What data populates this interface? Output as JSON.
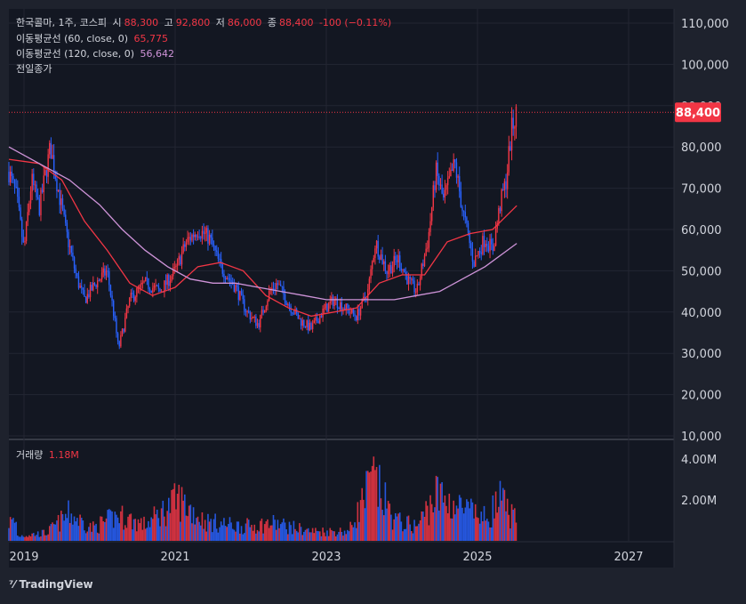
{
  "header": {
    "symbol": "한국콜마, 1주, 코스피",
    "open_label": "시",
    "open": "88,300",
    "high_label": "고",
    "high": "92,800",
    "low_label": "저",
    "low": "86,000",
    "close_label": "종",
    "close": "88,400",
    "change": "-100 (−0.11%)"
  },
  "indicators": [
    {
      "label": "이동평균선 (60, close, 0)",
      "value": "65,775",
      "color": "#f23645"
    },
    {
      "label": "이동평균선 (120, close, 0)",
      "value": "56,642",
      "color": "#ce93d8"
    }
  ],
  "prev_close_label": "전일종가",
  "last_price_label": "88,400",
  "volume": {
    "label": "거래량",
    "value": "1.18M"
  },
  "branding": "TradingView",
  "colors": {
    "up": "#f23645",
    "down": "#2962ff",
    "background": "#131722",
    "panel": "#1e222d",
    "ma60": "#f23645",
    "ma120": "#ce93d8"
  },
  "chart_data": {
    "type": "candlestick",
    "interval": "1 week",
    "price_axis": {
      "ticks": [
        "110,000",
        "100,000",
        "90,000",
        "80,000",
        "70,000",
        "60,000",
        "50,000",
        "40,000",
        "30,000",
        "20,000",
        "10,000"
      ],
      "ylim": [
        10000,
        110000
      ]
    },
    "volume_axis": {
      "ticks": [
        "4.00M",
        "2.00M"
      ]
    },
    "time_axis": {
      "ticks": [
        "2019",
        "2021",
        "2023",
        "2025",
        "2027"
      ],
      "xlim": [
        2018.8,
        2027.6
      ]
    },
    "price_series": [
      {
        "t": 2018.8,
        "p": 74000
      },
      {
        "t": 2018.9,
        "p": 68000
      },
      {
        "t": 2019.0,
        "p": 55000
      },
      {
        "t": 2019.1,
        "p": 72000
      },
      {
        "t": 2019.2,
        "p": 65000
      },
      {
        "t": 2019.35,
        "p": 80000
      },
      {
        "t": 2019.45,
        "p": 70000
      },
      {
        "t": 2019.55,
        "p": 60000
      },
      {
        "t": 2019.7,
        "p": 48000
      },
      {
        "t": 2019.8,
        "p": 43000
      },
      {
        "t": 2019.95,
        "p": 47000
      },
      {
        "t": 2020.1,
        "p": 50000
      },
      {
        "t": 2020.2,
        "p": 38000
      },
      {
        "t": 2020.25,
        "p": 31000
      },
      {
        "t": 2020.4,
        "p": 43000
      },
      {
        "t": 2020.6,
        "p": 47000
      },
      {
        "t": 2020.8,
        "p": 45000
      },
      {
        "t": 2021.0,
        "p": 50000
      },
      {
        "t": 2021.15,
        "p": 57000
      },
      {
        "t": 2021.3,
        "p": 60000
      },
      {
        "t": 2021.45,
        "p": 58000
      },
      {
        "t": 2021.6,
        "p": 51000
      },
      {
        "t": 2021.8,
        "p": 46000
      },
      {
        "t": 2021.95,
        "p": 40000
      },
      {
        "t": 2022.1,
        "p": 37000
      },
      {
        "t": 2022.25,
        "p": 45000
      },
      {
        "t": 2022.35,
        "p": 47000
      },
      {
        "t": 2022.5,
        "p": 42000
      },
      {
        "t": 2022.65,
        "p": 38000
      },
      {
        "t": 2022.8,
        "p": 36000
      },
      {
        "t": 2022.95,
        "p": 40000
      },
      {
        "t": 2023.1,
        "p": 43000
      },
      {
        "t": 2023.25,
        "p": 41000
      },
      {
        "t": 2023.4,
        "p": 39000
      },
      {
        "t": 2023.55,
        "p": 45000
      },
      {
        "t": 2023.65,
        "p": 57000
      },
      {
        "t": 2023.8,
        "p": 50000
      },
      {
        "t": 2023.95,
        "p": 53000
      },
      {
        "t": 2024.1,
        "p": 47000
      },
      {
        "t": 2024.2,
        "p": 45000
      },
      {
        "t": 2024.35,
        "p": 58000
      },
      {
        "t": 2024.45,
        "p": 74000
      },
      {
        "t": 2024.55,
        "p": 67000
      },
      {
        "t": 2024.7,
        "p": 76000
      },
      {
        "t": 2024.8,
        "p": 65000
      },
      {
        "t": 2024.95,
        "p": 52000
      },
      {
        "t": 2025.1,
        "p": 58000
      },
      {
        "t": 2025.2,
        "p": 55000
      },
      {
        "t": 2025.3,
        "p": 66000
      },
      {
        "t": 2025.38,
        "p": 72000
      },
      {
        "t": 2025.45,
        "p": 84000
      },
      {
        "t": 2025.52,
        "p": 88400
      }
    ],
    "ma60": [
      {
        "t": 2018.8,
        "p": 77000
      },
      {
        "t": 2019.2,
        "p": 76000
      },
      {
        "t": 2019.5,
        "p": 72000
      },
      {
        "t": 2019.8,
        "p": 62000
      },
      {
        "t": 2020.1,
        "p": 55000
      },
      {
        "t": 2020.4,
        "p": 47000
      },
      {
        "t": 2020.7,
        "p": 44000
      },
      {
        "t": 2021.0,
        "p": 46000
      },
      {
        "t": 2021.3,
        "p": 51000
      },
      {
        "t": 2021.6,
        "p": 52000
      },
      {
        "t": 2021.9,
        "p": 50000
      },
      {
        "t": 2022.2,
        "p": 44000
      },
      {
        "t": 2022.5,
        "p": 41000
      },
      {
        "t": 2022.8,
        "p": 39000
      },
      {
        "t": 2023.1,
        "p": 40000
      },
      {
        "t": 2023.4,
        "p": 41000
      },
      {
        "t": 2023.7,
        "p": 47000
      },
      {
        "t": 2024.0,
        "p": 49000
      },
      {
        "t": 2024.3,
        "p": 49000
      },
      {
        "t": 2024.6,
        "p": 57000
      },
      {
        "t": 2024.9,
        "p": 59000
      },
      {
        "t": 2025.2,
        "p": 60000
      },
      {
        "t": 2025.52,
        "p": 65775
      }
    ],
    "ma120": [
      {
        "t": 2018.8,
        "p": 80000
      },
      {
        "t": 2019.2,
        "p": 76000
      },
      {
        "t": 2019.6,
        "p": 72000
      },
      {
        "t": 2020.0,
        "p": 66000
      },
      {
        "t": 2020.3,
        "p": 60000
      },
      {
        "t": 2020.6,
        "p": 55000
      },
      {
        "t": 2020.9,
        "p": 51000
      },
      {
        "t": 2021.2,
        "p": 48000
      },
      {
        "t": 2021.5,
        "p": 47000
      },
      {
        "t": 2021.8,
        "p": 47000
      },
      {
        "t": 2022.1,
        "p": 46000
      },
      {
        "t": 2022.4,
        "p": 45000
      },
      {
        "t": 2022.7,
        "p": 44000
      },
      {
        "t": 2023.0,
        "p": 43000
      },
      {
        "t": 2023.3,
        "p": 43000
      },
      {
        "t": 2023.6,
        "p": 43000
      },
      {
        "t": 2023.9,
        "p": 43000
      },
      {
        "t": 2024.2,
        "p": 44000
      },
      {
        "t": 2024.5,
        "p": 45000
      },
      {
        "t": 2024.8,
        "p": 48000
      },
      {
        "t": 2025.1,
        "p": 51000
      },
      {
        "t": 2025.52,
        "p": 56642
      }
    ],
    "volume_series": [
      {
        "t": 2018.9,
        "v": 0.3
      },
      {
        "t": 2019.3,
        "v": 0.5
      },
      {
        "t": 2019.6,
        "v": 1.7
      },
      {
        "t": 2019.9,
        "v": 0.8
      },
      {
        "t": 2020.25,
        "v": 1.6
      },
      {
        "t": 2020.6,
        "v": 1.0
      },
      {
        "t": 2021.05,
        "v": 2.6
      },
      {
        "t": 2021.4,
        "v": 1.2
      },
      {
        "t": 2021.9,
        "v": 0.9
      },
      {
        "t": 2022.3,
        "v": 1.1
      },
      {
        "t": 2022.8,
        "v": 0.6
      },
      {
        "t": 2023.3,
        "v": 0.6
      },
      {
        "t": 2023.62,
        "v": 3.9
      },
      {
        "t": 2023.9,
        "v": 1.3
      },
      {
        "t": 2024.2,
        "v": 0.9
      },
      {
        "t": 2024.45,
        "v": 2.9
      },
      {
        "t": 2024.8,
        "v": 2.0
      },
      {
        "t": 2025.1,
        "v": 1.4
      },
      {
        "t": 2025.3,
        "v": 2.5
      },
      {
        "t": 2025.52,
        "v": 1.18
      }
    ]
  }
}
